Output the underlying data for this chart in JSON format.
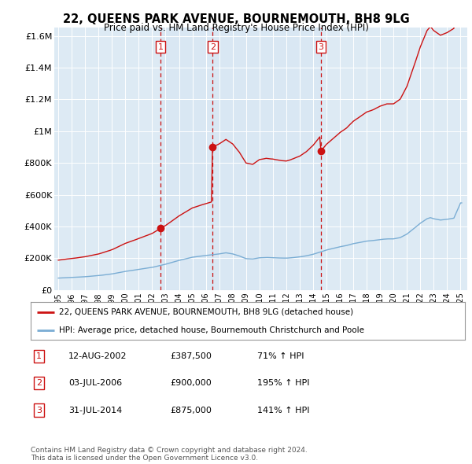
{
  "title": "22, QUEENS PARK AVENUE, BOURNEMOUTH, BH8 9LG",
  "subtitle": "Price paid vs. HM Land Registry's House Price Index (HPI)",
  "sale_dates_num": [
    2002.62,
    2006.51,
    2014.58
  ],
  "sale_prices": [
    387500,
    900000,
    875000
  ],
  "sale_labels": [
    "1",
    "2",
    "3"
  ],
  "sale_date_strs": [
    "12-AUG-2002",
    "03-JUL-2006",
    "31-JUL-2014"
  ],
  "sale_price_strs": [
    "£387,500",
    "£900,000",
    "£875,000"
  ],
  "sale_hpi_strs": [
    "71% ↑ HPI",
    "195% ↑ HPI",
    "141% ↑ HPI"
  ],
  "hpi_line_color": "#7aadd4",
  "price_line_color": "#cc1111",
  "dashed_line_color": "#cc1111",
  "background_color": "#ddeaf4",
  "footer_text": "Contains HM Land Registry data © Crown copyright and database right 2024.\nThis data is licensed under the Open Government Licence v3.0.",
  "ylim": [
    0,
    1650000
  ],
  "xlim_start": 1994.7,
  "xlim_end": 2025.5,
  "yticks": [
    0,
    200000,
    400000,
    600000,
    800000,
    1000000,
    1200000,
    1400000,
    1600000
  ],
  "ytick_labels": [
    "£0",
    "£200K",
    "£400K",
    "£600K",
    "£800K",
    "£1M",
    "£1.2M",
    "£1.4M",
    "£1.6M"
  ],
  "xtick_years": [
    1995,
    1996,
    1997,
    1998,
    1999,
    2000,
    2001,
    2002,
    2003,
    2004,
    2005,
    2006,
    2007,
    2008,
    2009,
    2010,
    2011,
    2012,
    2013,
    2014,
    2015,
    2016,
    2017,
    2018,
    2019,
    2020,
    2021,
    2022,
    2023,
    2024,
    2025
  ]
}
